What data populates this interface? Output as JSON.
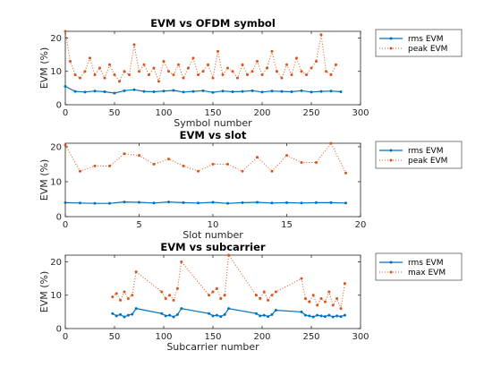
{
  "chart_data": [
    {
      "type": "line",
      "title": "EVM vs OFDM symbol",
      "xlabel": "Symbol number",
      "ylabel": "EVM (%)",
      "xlim": [
        0,
        300
      ],
      "ylim": [
        0,
        22
      ],
      "xticks": [
        "0",
        "50",
        "100",
        "150",
        "200",
        "250",
        "300"
      ],
      "yticks": [
        "0",
        "10",
        "20"
      ],
      "legend": "outside-right",
      "series": [
        {
          "name": "rms EVM",
          "color": "#0072BD",
          "style": "solid",
          "marker": "dot",
          "x": [
            0,
            10,
            20,
            30,
            40,
            50,
            60,
            70,
            80,
            90,
            100,
            110,
            120,
            130,
            140,
            150,
            160,
            170,
            180,
            190,
            200,
            210,
            220,
            230,
            240,
            250,
            260,
            270,
            280
          ],
          "values": [
            5.5,
            4.0,
            3.8,
            4.1,
            3.9,
            3.5,
            4.2,
            4.5,
            4.0,
            3.9,
            4.1,
            4.3,
            3.8,
            4.0,
            4.2,
            3.7,
            4.1,
            3.9,
            4.0,
            4.2,
            3.8,
            4.1,
            4.0,
            3.9,
            4.2,
            3.8,
            4.0,
            4.1,
            3.9
          ]
        },
        {
          "name": "peak EVM",
          "color": "#D95319",
          "style": "dotted",
          "marker": "dot",
          "x": [
            0,
            5,
            10,
            15,
            20,
            25,
            30,
            35,
            40,
            45,
            50,
            55,
            60,
            65,
            70,
            75,
            80,
            85,
            90,
            95,
            100,
            105,
            110,
            115,
            120,
            125,
            130,
            135,
            140,
            145,
            150,
            155,
            160,
            165,
            170,
            175,
            180,
            185,
            190,
            195,
            200,
            205,
            210,
            215,
            220,
            225,
            230,
            235,
            240,
            245,
            250,
            255,
            260,
            265,
            270,
            275
          ],
          "values": [
            22,
            13,
            9,
            8,
            10,
            14,
            9,
            11,
            8,
            12,
            9,
            7,
            10,
            9,
            18,
            10,
            12,
            9,
            11,
            7,
            13,
            10,
            9,
            12,
            8,
            11,
            14,
            9,
            10,
            12,
            8,
            16,
            9,
            11,
            10,
            8,
            12,
            9,
            10,
            13,
            9,
            11,
            16,
            10,
            8,
            12,
            9,
            14,
            10,
            9,
            11,
            13,
            21,
            10,
            9,
            12
          ]
        }
      ]
    },
    {
      "type": "line",
      "title": "EVM vs slot",
      "xlabel": "Slot number",
      "ylabel": "EVM (%)",
      "xlim": [
        0,
        20
      ],
      "ylim": [
        0,
        21
      ],
      "xticks": [
        "0",
        "5",
        "10",
        "15",
        "20"
      ],
      "yticks": [
        "0",
        "10",
        "20"
      ],
      "legend": "outside-right",
      "series": [
        {
          "name": "rms EVM",
          "color": "#0072BD",
          "style": "solid",
          "marker": "dot",
          "x": [
            0,
            1,
            2,
            3,
            4,
            5,
            6,
            7,
            8,
            9,
            10,
            11,
            12,
            13,
            14,
            15,
            16,
            17,
            18,
            19
          ],
          "values": [
            4.0,
            3.9,
            3.8,
            3.8,
            4.2,
            4.1,
            3.9,
            4.2,
            4.0,
            3.9,
            4.1,
            3.8,
            4.0,
            4.1,
            3.9,
            4.0,
            3.9,
            4.0,
            4.0,
            3.9
          ]
        },
        {
          "name": "peak EVM",
          "color": "#D95319",
          "style": "dotted",
          "marker": "dot",
          "x": [
            0,
            1,
            2,
            3,
            4,
            5,
            6,
            7,
            8,
            9,
            10,
            11,
            12,
            13,
            14,
            15,
            16,
            17,
            18,
            19
          ],
          "values": [
            20.5,
            13,
            14.5,
            14.5,
            18,
            17.5,
            15,
            16.5,
            14.5,
            13,
            15,
            15,
            13,
            17,
            13,
            17.5,
            15.5,
            15.5,
            21,
            12.5
          ]
        }
      ]
    },
    {
      "type": "line",
      "title": "EVM vs subcarrier",
      "xlabel": "Subcarrier number",
      "ylabel": "EVM (%)",
      "xlim": [
        0,
        300
      ],
      "ylim": [
        0,
        22
      ],
      "xticks": [
        "0",
        "50",
        "100",
        "150",
        "200",
        "250",
        "300"
      ],
      "yticks": [
        "0",
        "10",
        "20"
      ],
      "legend": "outside-right",
      "series": [
        {
          "name": "rms EVM",
          "color": "#0072BD",
          "style": "solid",
          "marker": "dot",
          "x": [
            48,
            52,
            56,
            60,
            64,
            68,
            72,
            98,
            102,
            106,
            110,
            114,
            118,
            146,
            150,
            154,
            158,
            162,
            166,
            194,
            198,
            202,
            206,
            210,
            214,
            240,
            244,
            248,
            252,
            256,
            260,
            264,
            268,
            272,
            276,
            280,
            284
          ],
          "values": [
            4.5,
            3.8,
            4.2,
            3.5,
            4.0,
            4.3,
            6.0,
            4.5,
            3.8,
            4.0,
            3.5,
            4.2,
            6.0,
            4.5,
            3.8,
            4.0,
            3.6,
            4.2,
            6.0,
            4.5,
            3.8,
            4.0,
            3.6,
            4.2,
            5.5,
            5.0,
            4.0,
            3.8,
            3.5,
            4.0,
            3.8,
            3.6,
            4.0,
            3.5,
            3.8,
            3.6,
            4.0
          ]
        },
        {
          "name": "max EVM",
          "color": "#D95319",
          "style": "dotted",
          "marker": "dot",
          "x": [
            48,
            52,
            56,
            60,
            64,
            68,
            72,
            98,
            102,
            106,
            110,
            114,
            118,
            146,
            150,
            154,
            158,
            162,
            166,
            194,
            198,
            202,
            206,
            210,
            214,
            240,
            244,
            248,
            252,
            256,
            260,
            264,
            268,
            272,
            276,
            280,
            284
          ],
          "values": [
            9.5,
            10.5,
            8.5,
            11,
            9,
            10,
            17,
            11,
            9,
            10,
            8.5,
            12,
            20,
            10,
            11,
            12,
            9,
            10,
            22,
            10,
            9,
            11,
            8.5,
            10,
            11,
            15,
            9,
            8,
            10,
            7,
            9,
            8,
            11,
            7,
            9,
            6,
            13.5
          ]
        }
      ]
    }
  ]
}
